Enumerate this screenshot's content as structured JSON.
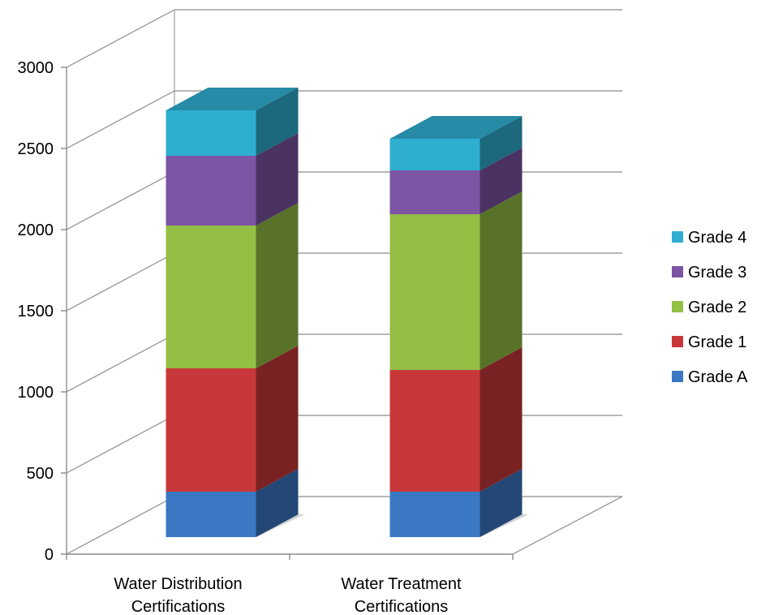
{
  "chart_data": {
    "type": "bar",
    "stacked": true,
    "three_d": true,
    "categories": [
      "Water Distribution Certifications",
      "Water Treatment Certifications"
    ],
    "category_lines": [
      [
        "Water Distribution",
        "Certifications"
      ],
      [
        "Water Treatment",
        "Certifications"
      ]
    ],
    "series": [
      {
        "name": "Grade A",
        "values": [
          280,
          280
        ],
        "color": "#3a78c4"
      },
      {
        "name": "Grade 1",
        "values": [
          760,
          750
        ],
        "color": "#c8383a"
      },
      {
        "name": "Grade 2",
        "values": [
          880,
          960
        ],
        "color": "#94be44"
      },
      {
        "name": "Grade 3",
        "values": [
          430,
          270
        ],
        "color": "#7c55a4"
      },
      {
        "name": "Grade 4",
        "values": [
          280,
          195
        ],
        "color": "#2eaed0"
      }
    ],
    "ylim": [
      0,
      3000
    ],
    "yticks": [
      "0",
      "500",
      "1000",
      "1500",
      "2000",
      "2500",
      "3000"
    ],
    "ytick_values": [
      0,
      500,
      1000,
      1500,
      2000,
      2500,
      3000
    ],
    "grid": true,
    "legend_position": "right",
    "title": "",
    "xlabel": "",
    "ylabel": ""
  }
}
